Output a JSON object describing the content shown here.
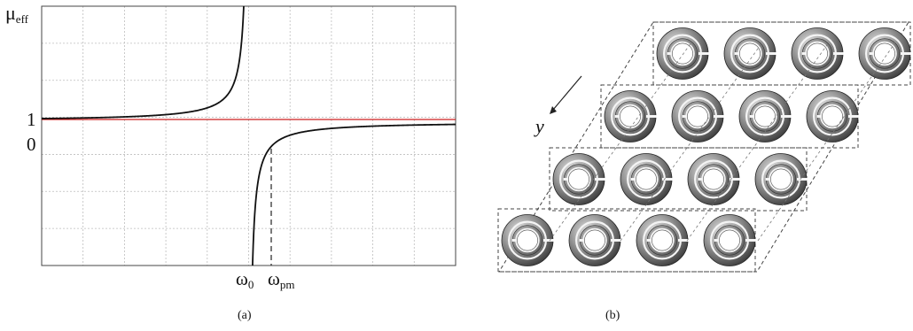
{
  "panel_a": {
    "ylabel": "μ",
    "ylabel_sub": "eff",
    "tick_one": "1",
    "tick_zero": "0",
    "omega0": "ω",
    "omega0_sub": "0",
    "omegapm": "ω",
    "omegapm_sub": "pm",
    "caption": "(a)",
    "colors": {
      "curve": "#111111",
      "unity_line": "#cc1f1f",
      "grid": "#bdbdbd"
    }
  },
  "panel_b": {
    "axis_label": "y",
    "caption": "(b)",
    "rows": 4,
    "rings_per_row": 4
  }
}
